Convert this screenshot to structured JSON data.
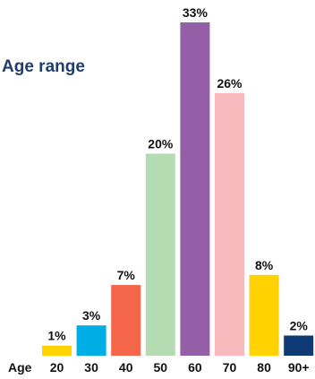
{
  "chart_data": {
    "type": "bar",
    "title": "Age range",
    "xlabel": "Age",
    "ylabel": "",
    "categories": [
      "20",
      "30",
      "40",
      "50",
      "60",
      "70",
      "80",
      "90+"
    ],
    "values": [
      1,
      3,
      7,
      20,
      33,
      26,
      8,
      2
    ],
    "value_labels": [
      "1%",
      "3%",
      "7%",
      "20%",
      "33%",
      "26%",
      "8%",
      "2%"
    ],
    "unit": "%",
    "ylim": [
      0,
      33
    ],
    "grid": false,
    "legend": "none",
    "colors": [
      "#ffd200",
      "#00aee6",
      "#f4654a",
      "#b5dbb2",
      "#955fa8",
      "#f7b9bb",
      "#ffd200",
      "#0e3a75"
    ]
  }
}
